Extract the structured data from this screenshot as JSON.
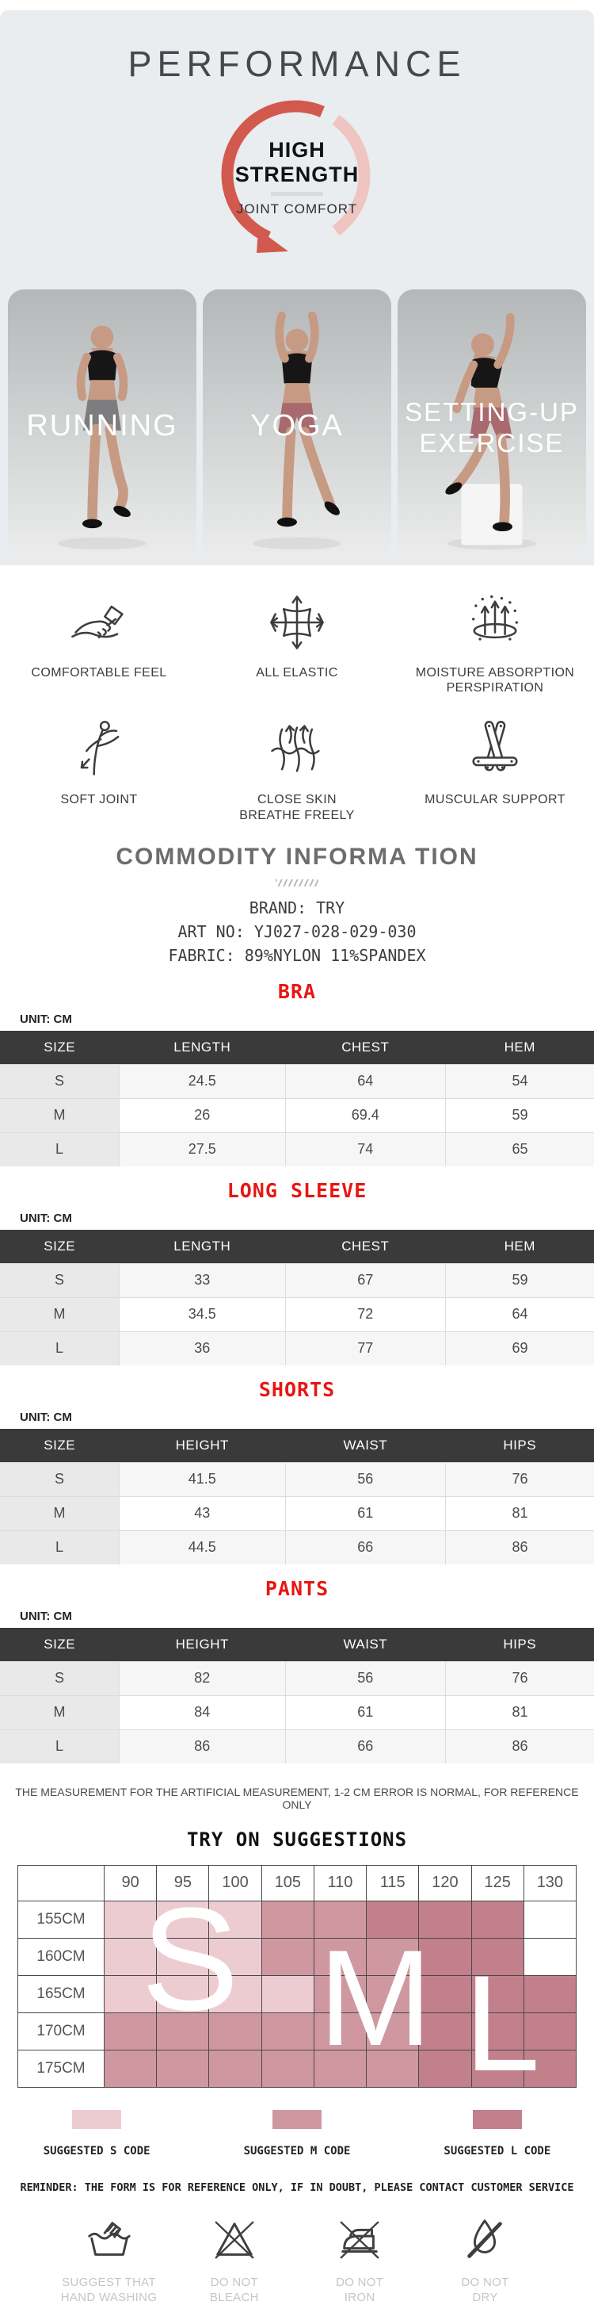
{
  "page": {
    "title": "PERFORMANCE",
    "colors": {
      "top_bg": "#e9edf0",
      "accent_red": "#e81612",
      "arc_coral": "#d2594d",
      "arc_pink": "#eec5c1",
      "table_header_bg": "#3a3a3a",
      "size_col_bg": "#e9e9e9"
    }
  },
  "badge": {
    "line1": "HIGH",
    "line2": "STRENGTH",
    "subtitle": "JOINT COMFORT"
  },
  "photos": [
    {
      "label": "RUNNING"
    },
    {
      "label": "YOGA"
    },
    {
      "label": "SETTING-UP\nEXERCISE"
    }
  ],
  "features": [
    {
      "icon": "hand-comfort-icon",
      "label": "COMFORTABLE FEEL"
    },
    {
      "icon": "stretch-icon",
      "label": "ALL ELASTIC"
    },
    {
      "icon": "moisture-icon",
      "label": "MOISTURE ABSORPTION\nPERSPIRATION"
    },
    {
      "icon": "dancer-icon",
      "label": "SOFT JOINT"
    },
    {
      "icon": "breathe-icon",
      "label": "CLOSE SKIN\nBREATHE FREELY"
    },
    {
      "icon": "support-icon",
      "label": "MUSCULAR SUPPORT"
    }
  ],
  "commodity": {
    "title": "COMMODITY INFORMA TION",
    "lines": [
      "BRAND: TRY",
      "ART NO: YJ027-028-029-030",
      "FABRIC: 89%NYLON 11%SPANDEX"
    ]
  },
  "size_charts": [
    {
      "title": "BRA",
      "unit": "UNIT: CM",
      "columns": [
        "SIZE",
        "LENGTH",
        "CHEST",
        "HEM"
      ],
      "rows": [
        [
          "S",
          "24.5",
          "64",
          "54"
        ],
        [
          "M",
          "26",
          "69.4",
          "59"
        ],
        [
          "L",
          "27.5",
          "74",
          "65"
        ]
      ]
    },
    {
      "title": "LONG SLEEVE",
      "unit": "UNIT: CM",
      "columns": [
        "SIZE",
        "LENGTH",
        "CHEST",
        "HEM"
      ],
      "rows": [
        [
          "S",
          "33",
          "67",
          "59"
        ],
        [
          "M",
          "34.5",
          "72",
          "64"
        ],
        [
          "L",
          "36",
          "77",
          "69"
        ]
      ]
    },
    {
      "title": "SHORTS",
      "unit": "UNIT: CM",
      "columns": [
        "SIZE",
        "HEIGHT",
        "WAIST",
        "HIPS"
      ],
      "rows": [
        [
          "S",
          "41.5",
          "56",
          "76"
        ],
        [
          "M",
          "43",
          "61",
          "81"
        ],
        [
          "L",
          "44.5",
          "66",
          "86"
        ]
      ]
    },
    {
      "title": "PANTS",
      "unit": "UNIT: CM",
      "columns": [
        "SIZE",
        "HEIGHT",
        "WAIST",
        "HIPS"
      ],
      "rows": [
        [
          "S",
          "82",
          "56",
          "76"
        ],
        [
          "M",
          "84",
          "61",
          "81"
        ],
        [
          "L",
          "86",
          "66",
          "86"
        ]
      ]
    }
  ],
  "measure_note": "THE MEASUREMENT FOR THE ARTIFICIAL MEASUREMENT, 1-2 CM ERROR IS NORMAL, FOR REFERENCE ONLY",
  "try_on": {
    "title": "TRY ON SUGGESTIONS",
    "col_headers": [
      "90",
      "95",
      "100",
      "105",
      "110",
      "115",
      "120",
      "125",
      "130"
    ],
    "row_headers": [
      "155CM",
      "160CM",
      "165CM",
      "170CM",
      "175CM"
    ],
    "cells": [
      [
        "S",
        "S",
        "S",
        "M",
        "M",
        "L",
        "L",
        "L",
        ""
      ],
      [
        "S",
        "S",
        "S",
        "M",
        "M",
        "M",
        "L",
        "L",
        ""
      ],
      [
        "S",
        "S",
        "S",
        "S",
        "M",
        "M",
        "L",
        "L",
        "L"
      ],
      [
        "M",
        "M",
        "M",
        "M",
        "M",
        "M",
        "L",
        "L",
        "L"
      ],
      [
        "M",
        "M",
        "M",
        "M",
        "M",
        "M",
        "L",
        "L",
        "L"
      ]
    ],
    "legend": [
      {
        "code": "S",
        "label": "SUGGESTED S CODE",
        "color": "#edccd1"
      },
      {
        "code": "M",
        "label": "SUGGESTED M CODE",
        "color": "#cf98a0"
      },
      {
        "code": "L",
        "label": "SUGGESTED L CODE",
        "color": "#c1808b"
      }
    ]
  },
  "reminder": "REMINDER: THE FORM IS FOR REFERENCE ONLY, IF IN DOUBT, PLEASE CONTACT CUSTOMER SERVICE",
  "care": [
    {
      "icon": "hand-wash-icon",
      "label": "SUGGEST THAT\nHAND WASHING"
    },
    {
      "icon": "no-bleach-icon",
      "label": "DO NOT\nBLEACH"
    },
    {
      "icon": "no-iron-icon",
      "label": "DO NOT\nIRON"
    },
    {
      "icon": "no-dry-icon",
      "label": "DO NOT\nDRY"
    }
  ]
}
